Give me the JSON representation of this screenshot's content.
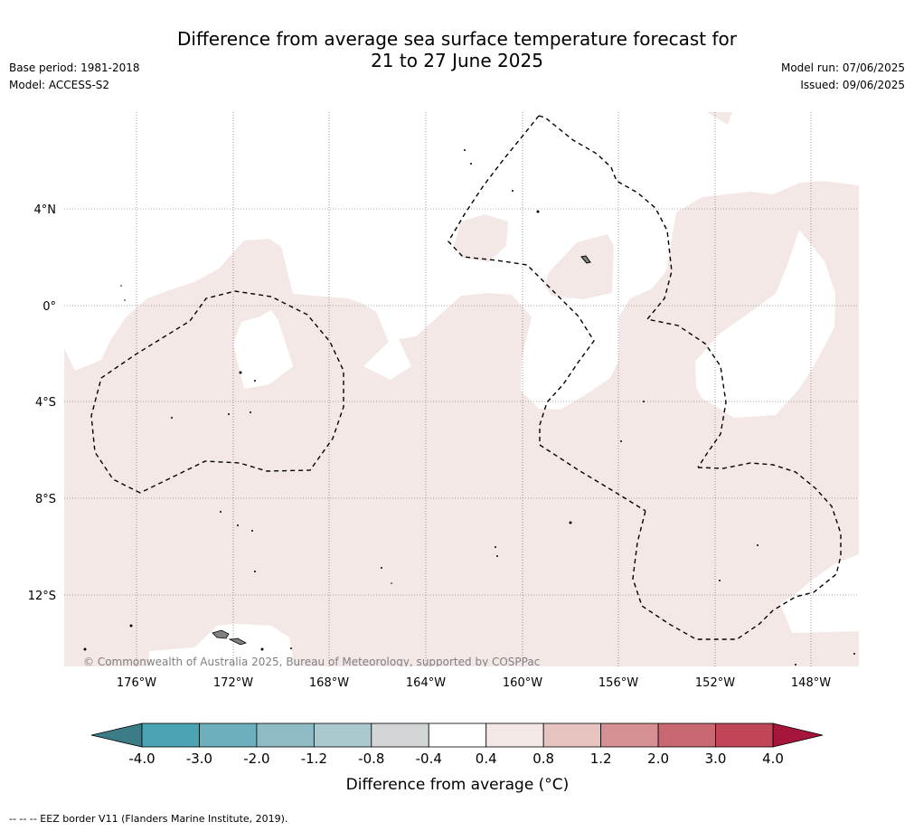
{
  "title_line1": "Difference from average sea surface temperature forecast for",
  "title_line2": "21 to 27 June 2025",
  "base_period": "Base period: 1981-2018",
  "model": "Model: ACCESS-S2",
  "model_run": "Model run: 07/06/2025",
  "issued": "Issued: 09/06/2025",
  "copyright": "© Commonwealth of Australia 2025, Bureau of Meteorology, supported by COSPPac",
  "footer": "--  --  -- EEZ border V11 (Flanders Marine Institute, 2019).",
  "lat_ticks": [
    "4°N",
    "0°",
    "4°S",
    "8°S",
    "12°S"
  ],
  "lon_ticks": [
    "176°W",
    "172°W",
    "168°W",
    "164°W",
    "160°W",
    "156°W",
    "152°W",
    "148°W"
  ],
  "colorbar": {
    "title": "Difference from average (°C)",
    "tick_labels": [
      "-4.0",
      "-3.0",
      "-2.0",
      "-1.2",
      "-0.8",
      "-0.4",
      "0.4",
      "0.8",
      "1.2",
      "2.0",
      "3.0",
      "4.0"
    ],
    "colors": [
      "#4aa4b3",
      "#6cb0bd",
      "#8fbbc5",
      "#aac9ce",
      "#d3d6d6",
      "#ffffff",
      "#f4e8e7",
      "#e7c4c0",
      "#d69094",
      "#c96773",
      "#c04556"
    ],
    "extend_low_color": "#3b7c86",
    "extend_high_color": "#a5163a"
  },
  "map_colors": {
    "positive_anomaly": "#f4e8e7",
    "land": "#808080",
    "gridline": "#555555"
  }
}
